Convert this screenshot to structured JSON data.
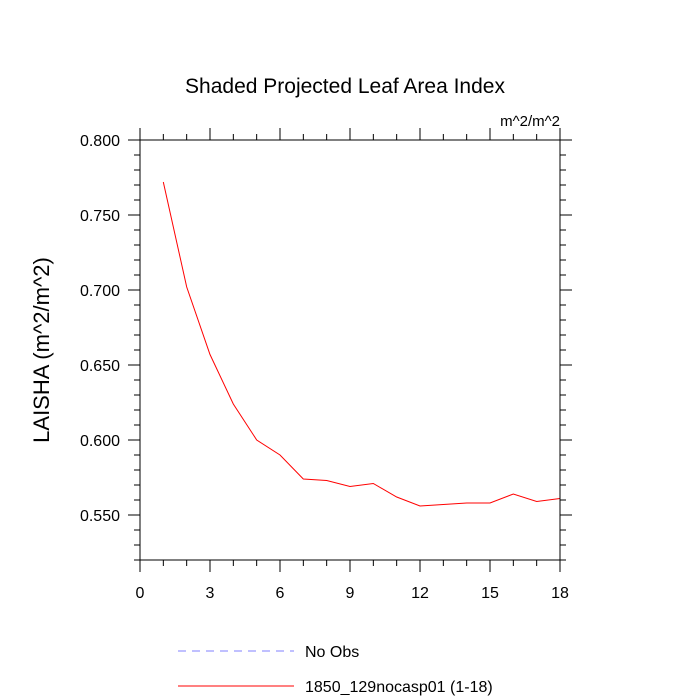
{
  "chart_data": {
    "type": "line",
    "title": "Shaded Projected Leaf Area Index",
    "units_label": "m^2/m^2",
    "ylabel": "LAISHA  (m^2/m^2)",
    "xlabel": "",
    "xlim": [
      0,
      18
    ],
    "ylim": [
      0.52,
      0.8
    ],
    "x_ticks": [
      0,
      3,
      6,
      9,
      12,
      15,
      18
    ],
    "x_tick_labels": [
      "0",
      "3",
      "6",
      "9",
      "12",
      "15",
      "18"
    ],
    "y_ticks": [
      0.55,
      0.6,
      0.65,
      0.7,
      0.75,
      0.8
    ],
    "y_tick_labels": [
      "0.550",
      "0.600",
      "0.650",
      "0.700",
      "0.750",
      "0.800"
    ],
    "grid": false,
    "legend_position": "bottom",
    "series": [
      {
        "name": "1850_129nocasp01 (1-18)",
        "color": "#ff0000",
        "style": "solid",
        "x": [
          1,
          2,
          3,
          4,
          5,
          6,
          7,
          8,
          9,
          10,
          11,
          12,
          13,
          14,
          15,
          16,
          17,
          18
        ],
        "values": [
          0.772,
          0.702,
          0.657,
          0.624,
          0.6,
          0.59,
          0.574,
          0.573,
          0.569,
          0.571,
          0.562,
          0.556,
          0.557,
          0.558,
          0.558,
          0.564,
          0.559,
          0.561
        ]
      }
    ],
    "legend": [
      {
        "label": "No Obs",
        "color": "#8080ff",
        "style": "dashed"
      },
      {
        "label": "1850_129nocasp01 (1-18)",
        "color": "#ff0000",
        "style": "solid"
      }
    ]
  }
}
